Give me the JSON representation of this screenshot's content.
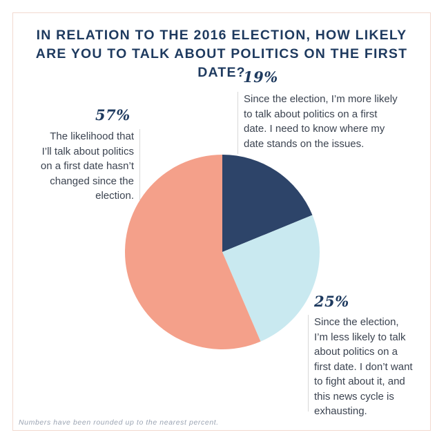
{
  "title_lines": [
    "IN RELATION TO THE 2016 ELECTION, HOW LIKELY",
    "ARE YOU TO TALK ABOUT POLITICS ON THE FIRST DATE?"
  ],
  "footnote": "Numbers have been rounded up to the nearest percent.",
  "chart_data": {
    "type": "pie",
    "title": "IN RELATION TO THE 2016 ELECTION, HOW LIKELY ARE YOU TO TALK ABOUT POLITICS ON THE FIRST DATE?",
    "slices": [
      {
        "label": "19%",
        "value": 19,
        "color": "#2d4469",
        "description_lines": [
          "Since the election, I’m more likely",
          "to talk about politics on a first",
          "date. I need to know where my",
          "date stands on the issues."
        ]
      },
      {
        "label": "25%",
        "value": 25,
        "color": "#c9e9f0",
        "description_lines": [
          "Since the election,",
          "I’m less likely to talk",
          "about politics on a",
          "first date. I don’t want",
          "to fight about it, and",
          "this news cycle is",
          "exhausting."
        ]
      },
      {
        "label": "57%",
        "value": 57,
        "color": "#f4a08a",
        "description_lines": [
          "The likelihood that",
          "I’ll talk about politics",
          "on a first date hasn’t",
          "changed since the",
          "election."
        ]
      }
    ]
  }
}
